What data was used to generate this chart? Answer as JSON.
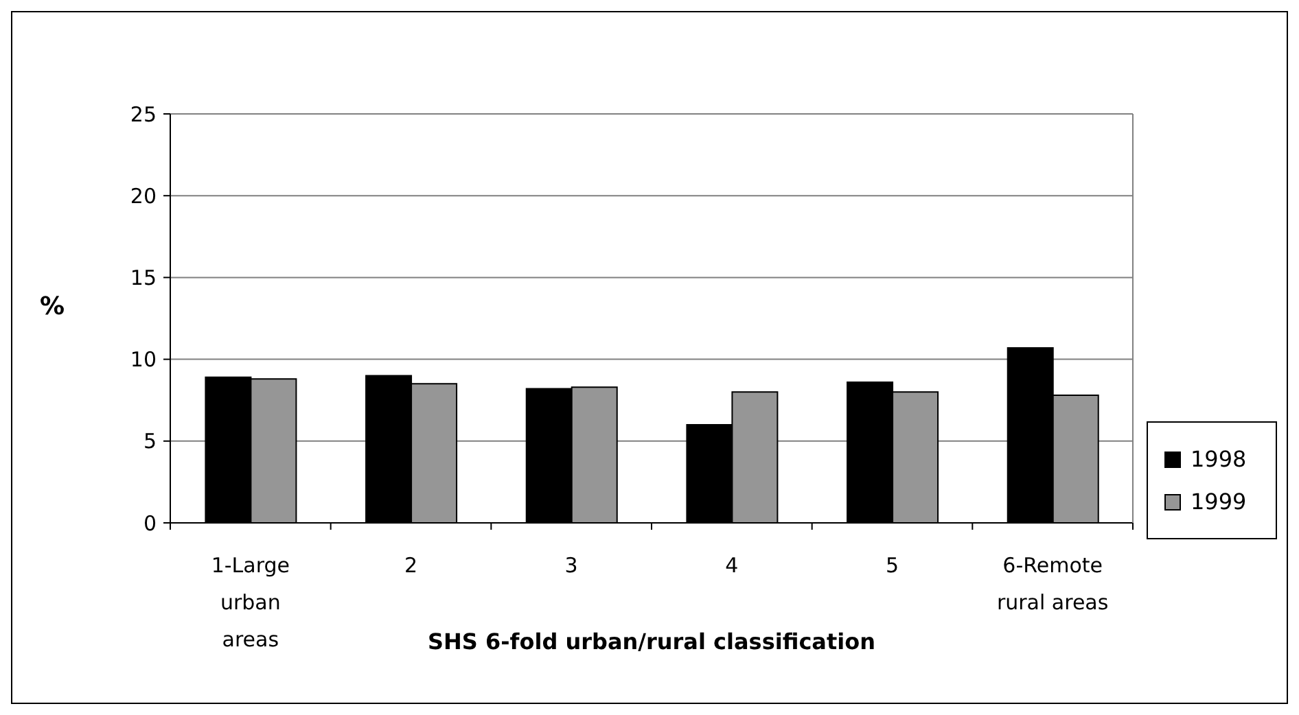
{
  "chart_data": {
    "type": "bar",
    "xlabel": "SHS 6-fold urban/rural classification",
    "ylabel": "%",
    "categories": [
      "1-Large urban areas",
      "2",
      "3",
      "4",
      "5",
      "6-Remote rural areas"
    ],
    "series": [
      {
        "name": "1998",
        "color": "#000000",
        "values": [
          8.9,
          9.0,
          8.2,
          6.0,
          8.6,
          10.7
        ]
      },
      {
        "name": "1999",
        "color": "#969696",
        "values": [
          8.8,
          8.5,
          8.3,
          8.0,
          8.0,
          7.8
        ]
      }
    ],
    "ylim": [
      0,
      25
    ],
    "yticks": [
      0,
      5,
      10,
      15,
      20,
      25
    ],
    "grid": "y",
    "legend": "right"
  }
}
